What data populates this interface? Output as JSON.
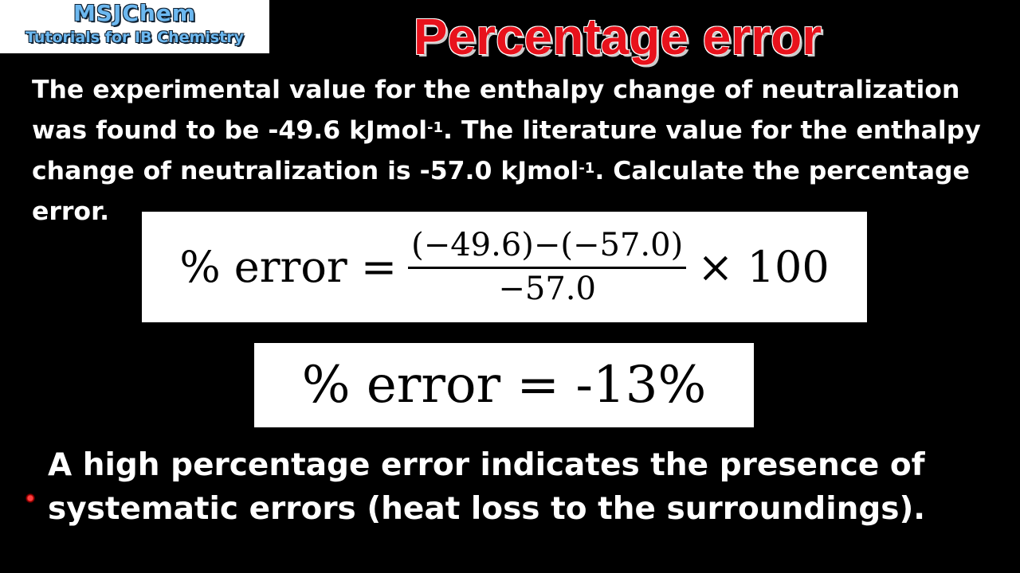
{
  "logo": {
    "line1": "MSJChem",
    "line2": "Tutorials for IB Chemistry"
  },
  "title": "Percentage error",
  "question": {
    "part1": "The experimental value for the enthalpy change of neutralization was found to be -49.6 kJmol",
    "sup1": "-1",
    "part2": ". The literature value for the enthalpy change of neutralization is -57.0 kJmol",
    "sup2": "-1",
    "part3": ". Calculate the percentage error."
  },
  "formula": {
    "lhs": "% error =",
    "numerator": "(−49.6)−(−57.0)",
    "denominator": "−57.0",
    "rhs": "× 100"
  },
  "result": "% error = -13%",
  "note": "A high percentage error indicates the presence of systematic errors (heat loss to the surroundings).",
  "colors": {
    "title": "#e8121c",
    "background": "#000000",
    "logo_text": "#6cb8f0"
  }
}
